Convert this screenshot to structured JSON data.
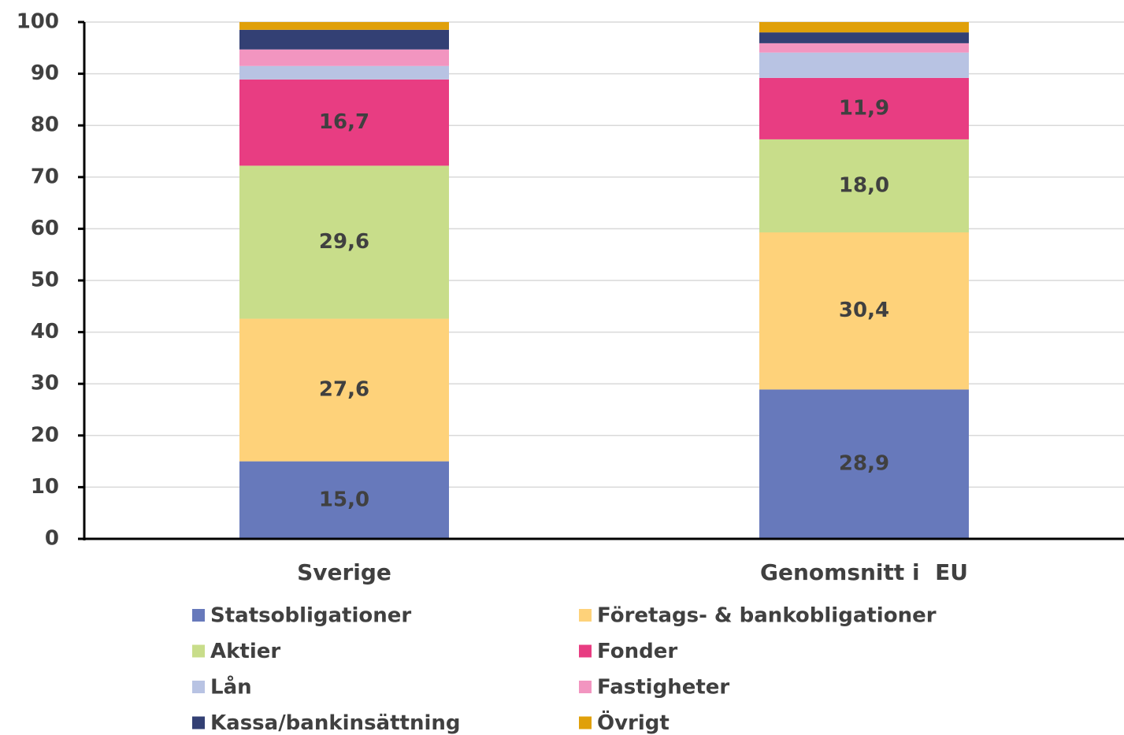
{
  "chart_data": {
    "type": "stacked_bar",
    "categories": [
      "Sverige",
      "Genomsnitt i  EU"
    ],
    "series": [
      {
        "name": "Statsobligationer",
        "color": "#6779bb",
        "values": [
          15.0,
          28.9
        ],
        "value_labels": [
          "15,0",
          "28,9"
        ]
      },
      {
        "name": "Företags- & bankobligationer",
        "color": "#fed27a",
        "values": [
          27.6,
          30.4
        ],
        "value_labels": [
          "27,6",
          "30,4"
        ]
      },
      {
        "name": "Aktier",
        "color": "#c8dd8a",
        "values": [
          29.6,
          18.0
        ],
        "value_labels": [
          "29,6",
          "18,0"
        ]
      },
      {
        "name": "Fonder",
        "color": "#e83d82",
        "values": [
          16.7,
          11.9
        ],
        "value_labels": [
          "16,7",
          "11,9"
        ]
      },
      {
        "name": "Lån",
        "color": "#b8c3e3",
        "values": [
          2.6,
          4.9
        ]
      },
      {
        "name": "Fastigheter",
        "color": "#f295c0",
        "values": [
          3.2,
          1.8
        ]
      },
      {
        "name": "Kassa/bankinsättning",
        "color": "#334074",
        "values": [
          3.8,
          2.1
        ]
      },
      {
        "name": "Övrigt",
        "color": "#e0a00a",
        "values": [
          1.5,
          2.0
        ]
      }
    ],
    "ylim": [
      0,
      100
    ],
    "yticks": [
      0,
      10,
      20,
      30,
      40,
      50,
      60,
      70,
      80,
      90,
      100
    ],
    "grid": true
  }
}
